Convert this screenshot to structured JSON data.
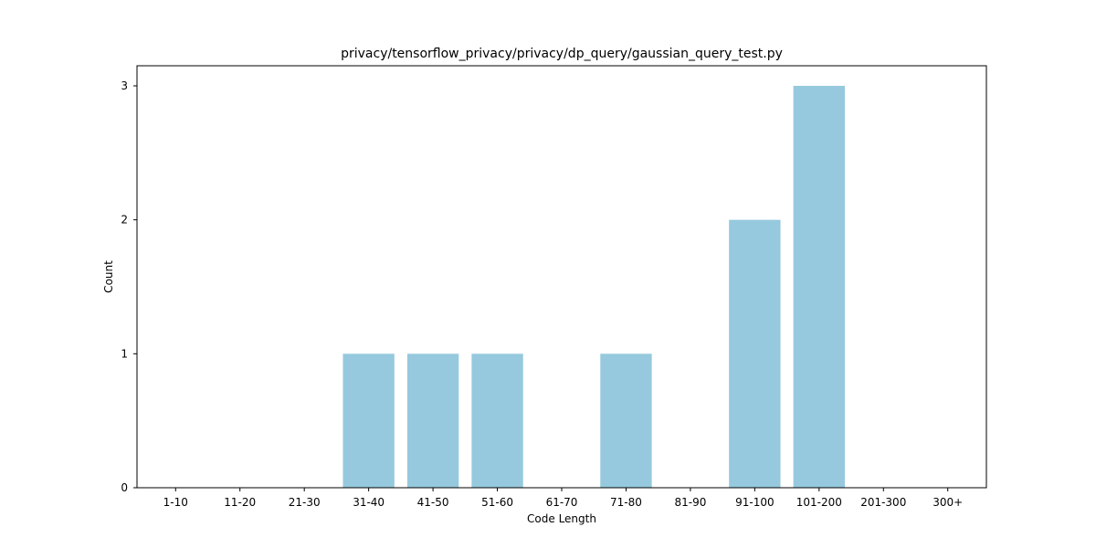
{
  "chart_data": {
    "type": "bar",
    "title": "privacy/tensorflow_privacy/privacy/dp_query/gaussian_query_test.py",
    "xlabel": "Code Length",
    "ylabel": "Count",
    "categories": [
      "1-10",
      "11-20",
      "21-30",
      "31-40",
      "41-50",
      "51-60",
      "61-70",
      "71-80",
      "81-90",
      "91-100",
      "101-200",
      "201-300",
      "300+"
    ],
    "values": [
      0,
      0,
      0,
      1,
      1,
      1,
      0,
      1,
      0,
      2,
      3,
      0,
      0
    ],
    "ylim": [
      0,
      3.15
    ],
    "yticks": [
      "0",
      "1",
      "2",
      "3"
    ],
    "bar_color": "#96c9dd",
    "grid": false,
    "legend": "none"
  }
}
